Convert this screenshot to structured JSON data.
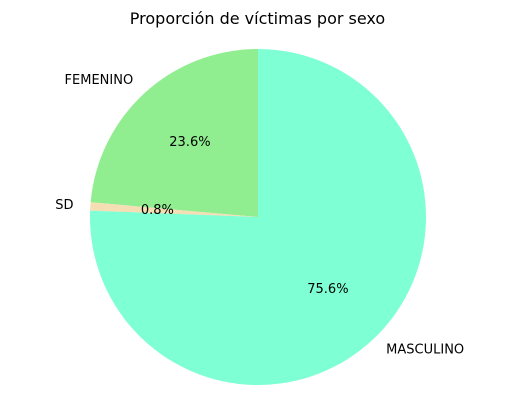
{
  "chart_data": {
    "type": "pie",
    "title": "Proporción de víctimas por sexo",
    "slices": [
      {
        "label": "FEMENINO",
        "value": 23.6,
        "pct_text": "23.6%",
        "color": "#90EE90"
      },
      {
        "label": "SD",
        "value": 0.8,
        "pct_text": "0.8%",
        "color": "#F5DEB3"
      },
      {
        "label": "MASCULINO",
        "value": 75.6,
        "pct_text": "75.6%",
        "color": "#7FFFD4"
      }
    ],
    "start_angle_deg": 90,
    "direction": "counterclockwise",
    "legend": "none"
  }
}
